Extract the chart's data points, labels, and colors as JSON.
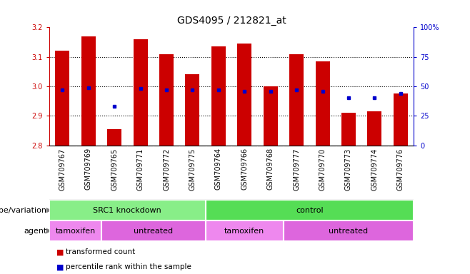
{
  "title": "GDS4095 / 212821_at",
  "samples": [
    "GSM709767",
    "GSM709769",
    "GSM709765",
    "GSM709771",
    "GSM709772",
    "GSM709775",
    "GSM709764",
    "GSM709766",
    "GSM709768",
    "GSM709777",
    "GSM709770",
    "GSM709773",
    "GSM709774",
    "GSM709776"
  ],
  "bar_values": [
    3.12,
    3.17,
    2.855,
    3.16,
    3.11,
    3.04,
    3.135,
    3.145,
    3.0,
    3.11,
    3.085,
    2.91,
    2.915,
    2.975
  ],
  "percentile_values": [
    47,
    49,
    33,
    48,
    47,
    47,
    47,
    46,
    46,
    47,
    46,
    40,
    40,
    44
  ],
  "bar_bottom": 2.8,
  "ylim": [
    2.8,
    3.2
  ],
  "right_ylim": [
    0,
    100
  ],
  "right_yticks": [
    0,
    25,
    50,
    75,
    100
  ],
  "right_yticklabels": [
    "0",
    "25",
    "50",
    "75",
    "100%"
  ],
  "left_yticks": [
    2.8,
    2.9,
    3.0,
    3.1,
    3.2
  ],
  "bar_color": "#cc0000",
  "percentile_color": "#0000cc",
  "genotype_groups": [
    {
      "label": "SRC1 knockdown",
      "start": 0,
      "end": 6,
      "color": "#88ee88"
    },
    {
      "label": "control",
      "start": 6,
      "end": 14,
      "color": "#55dd55"
    }
  ],
  "agent_groups": [
    {
      "label": "tamoxifen",
      "start": 0,
      "end": 2,
      "color": "#ee88ee"
    },
    {
      "label": "untreated",
      "start": 2,
      "end": 6,
      "color": "#dd66dd"
    },
    {
      "label": "tamoxifen",
      "start": 6,
      "end": 9,
      "color": "#ee88ee"
    },
    {
      "label": "untreated",
      "start": 9,
      "end": 14,
      "color": "#dd66dd"
    }
  ],
  "legend_items": [
    {
      "label": "transformed count",
      "color": "#cc0000"
    },
    {
      "label": "percentile rank within the sample",
      "color": "#0000cc"
    }
  ],
  "genotype_label": "genotype/variation",
  "agent_label": "agent",
  "bar_width": 0.55,
  "title_fontsize": 10,
  "tick_fontsize": 7,
  "label_fontsize": 8,
  "annotation_fontsize": 8,
  "sample_label_fontsize": 7,
  "xtick_bg": "#cccccc"
}
